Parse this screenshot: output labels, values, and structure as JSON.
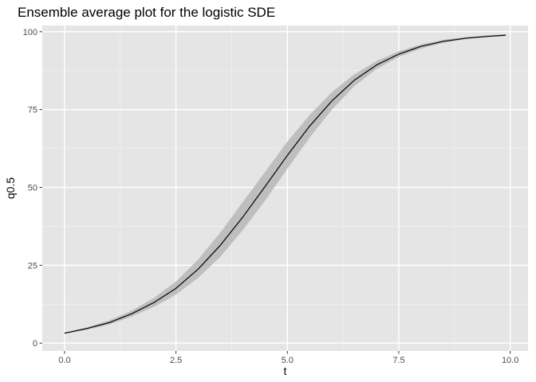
{
  "chart_data": {
    "type": "line",
    "title": "Ensemble average plot for the logistic SDE",
    "xlabel": "t",
    "ylabel": "q0.5",
    "xlim": [
      -0.5,
      10.4
    ],
    "ylim": [
      -2.5,
      102
    ],
    "x_ticks": [
      {
        "value": 0,
        "label": "0.0"
      },
      {
        "value": 2.5,
        "label": "2.5"
      },
      {
        "value": 5,
        "label": "5.0"
      },
      {
        "value": 7.5,
        "label": "7.5"
      },
      {
        "value": 10,
        "label": "10.0"
      }
    ],
    "y_ticks": [
      {
        "value": 0,
        "label": "0"
      },
      {
        "value": 25,
        "label": "25"
      },
      {
        "value": 50,
        "label": "50"
      },
      {
        "value": 75,
        "label": "75"
      },
      {
        "value": 100,
        "label": "100"
      }
    ],
    "grid": true,
    "colors": {
      "panel": "#e5e5e5",
      "grid_major": "#ffffff",
      "ribbon": "#bebebe",
      "line": "#000000"
    },
    "series": [
      {
        "x": [
          0,
          0.5,
          1,
          1.5,
          2,
          2.5,
          3,
          3.5,
          4,
          4.5,
          5,
          5.5,
          6,
          6.5,
          7,
          7.5,
          8,
          8.5,
          9,
          9.5,
          9.9
        ],
        "y": [
          3.2,
          4.7,
          6.6,
          9.4,
          13.0,
          17.6,
          23.8,
          31.5,
          40.5,
          50.3,
          60.3,
          69.7,
          77.8,
          84.4,
          89.3,
          92.8,
          95.3,
          96.9,
          97.9,
          98.5,
          98.9
        ],
        "lower": [
          3.0,
          4.3,
          6.0,
          8.5,
          11.6,
          15.6,
          21.0,
          27.8,
          36.3,
          45.8,
          56.0,
          66.0,
          75.0,
          82.5,
          88.0,
          91.9,
          94.6,
          96.4,
          97.6,
          98.3,
          98.6
        ],
        "upper": [
          3.4,
          5.1,
          7.3,
          10.4,
          14.5,
          19.8,
          26.9,
          35.6,
          45.3,
          55.0,
          64.7,
          73.3,
          80.6,
          86.3,
          90.6,
          93.7,
          95.9,
          97.4,
          98.3,
          98.8,
          99.1
        ]
      }
    ]
  }
}
